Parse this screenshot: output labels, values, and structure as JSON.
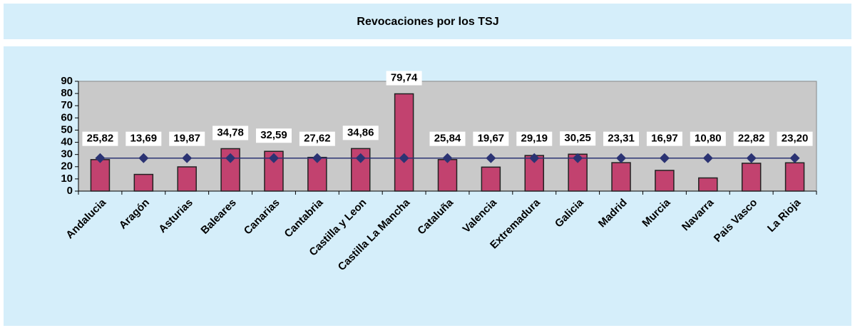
{
  "chart_data": {
    "type": "bar_line",
    "title": "Revocaciones por los TSJ",
    "categories": [
      "Andalucia",
      "Aragón",
      "Asturias",
      "Baleares",
      "Canarias",
      "Cantabria",
      "Castilla y Leon",
      "Castilla La Mancha",
      "Cataluña",
      "Valencia",
      "Extremadura",
      "Galicia",
      "Madrid",
      "Murcia",
      "Navarra",
      "Pais Vasco",
      "La Rioja"
    ],
    "series": [
      {
        "type": "bar",
        "color": "#c2426f",
        "values": [
          25.82,
          13.69,
          19.87,
          34.78,
          32.59,
          27.62,
          34.86,
          79.74,
          25.84,
          19.67,
          29.19,
          30.25,
          23.31,
          16.97,
          10.8,
          22.82,
          23.2
        ],
        "value_labels": [
          "25,82",
          "13,69",
          "19,87",
          "34,78",
          "32,59",
          "27,62",
          "34,86",
          "79,74",
          "25,84",
          "19,67",
          "29,19",
          "30,25",
          "23,31",
          "16,97",
          "10,80",
          "22,82",
          "23,20"
        ]
      },
      {
        "type": "line",
        "color": "#2b3373",
        "values": [
          27,
          27,
          27,
          27,
          27,
          27,
          27,
          27,
          27,
          27,
          27,
          27,
          27,
          27,
          27,
          27,
          27
        ]
      }
    ],
    "ylim": [
      0,
      90
    ],
    "yticks": [
      0,
      10,
      20,
      30,
      40,
      50,
      60,
      70,
      80,
      90
    ]
  }
}
